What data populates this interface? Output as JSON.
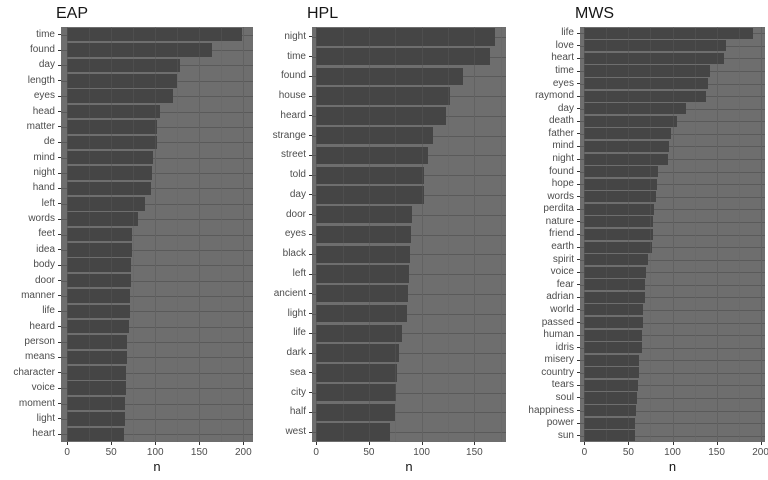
{
  "style": {
    "page_bg": "#FFFFFF",
    "panel_bg": "#6E6E6E",
    "bar_fill": "#454545",
    "grid_major": "#5A5A5A",
    "grid_minor": "#636363",
    "axis_text": "#4D4D4D",
    "tick_mark": "#333333",
    "title_color": "#161616"
  },
  "chart_data": [
    {
      "type": "bar",
      "orientation": "horizontal",
      "title": "EAP",
      "xlabel": "n",
      "grid": true,
      "legend": "none",
      "xdomain": [
        -7,
        211
      ],
      "xticks": [
        0,
        50,
        100,
        150,
        200
      ],
      "minor_ticks": [
        25,
        75,
        125,
        175
      ],
      "categories": [
        "time",
        "found",
        "day",
        "length",
        "eyes",
        "head",
        "matter",
        "de",
        "mind",
        "night",
        "hand",
        "left",
        "words",
        "feet",
        "idea",
        "body",
        "door",
        "manner",
        "life",
        "heard",
        "person",
        "means",
        "character",
        "voice",
        "moment",
        "light",
        "heart"
      ],
      "values": [
        198,
        165,
        128,
        125,
        120,
        105,
        102,
        102,
        97,
        96,
        95,
        88,
        81,
        74,
        74,
        73,
        73,
        71,
        71,
        70,
        68,
        68,
        67,
        67,
        66,
        66,
        65
      ]
    },
    {
      "type": "bar",
      "orientation": "horizontal",
      "title": "HPL",
      "xlabel": "n",
      "grid": true,
      "legend": "none",
      "xdomain": [
        -4,
        180
      ],
      "xticks": [
        0,
        50,
        100,
        150
      ],
      "minor_ticks": [
        25,
        75,
        125,
        175
      ],
      "categories": [
        "night",
        "time",
        "found",
        "house",
        "heard",
        "strange",
        "street",
        "told",
        "day",
        "door",
        "eyes",
        "black",
        "left",
        "ancient",
        "light",
        "life",
        "dark",
        "sea",
        "city",
        "half",
        "west"
      ],
      "values": [
        170,
        165,
        139,
        127,
        123,
        111,
        106,
        102,
        102,
        91,
        90,
        89,
        88,
        87,
        86,
        81,
        79,
        77,
        76,
        75,
        70
      ]
    },
    {
      "type": "bar",
      "orientation": "horizontal",
      "title": "MWS",
      "xlabel": "n",
      "grid": true,
      "legend": "none",
      "xdomain": [
        -5,
        205
      ],
      "xticks": [
        0,
        50,
        100,
        150,
        200
      ],
      "minor_ticks": [
        25,
        75,
        125,
        175
      ],
      "categories": [
        "life",
        "love",
        "heart",
        "time",
        "eyes",
        "raymond",
        "day",
        "death",
        "father",
        "mind",
        "night",
        "found",
        "hope",
        "words",
        "perdita",
        "nature",
        "friend",
        "earth",
        "spirit",
        "voice",
        "fear",
        "adrian",
        "world",
        "passed",
        "human",
        "idris",
        "misery",
        "country",
        "tears",
        "soul",
        "happiness",
        "power",
        "sun"
      ],
      "values": [
        191,
        161,
        158,
        143,
        140,
        138,
        115,
        105,
        98,
        96,
        95,
        83,
        82,
        81,
        79,
        78,
        78,
        77,
        72,
        70,
        69,
        69,
        66,
        66,
        65,
        65,
        62,
        62,
        61,
        60,
        59,
        58,
        57
      ]
    }
  ]
}
